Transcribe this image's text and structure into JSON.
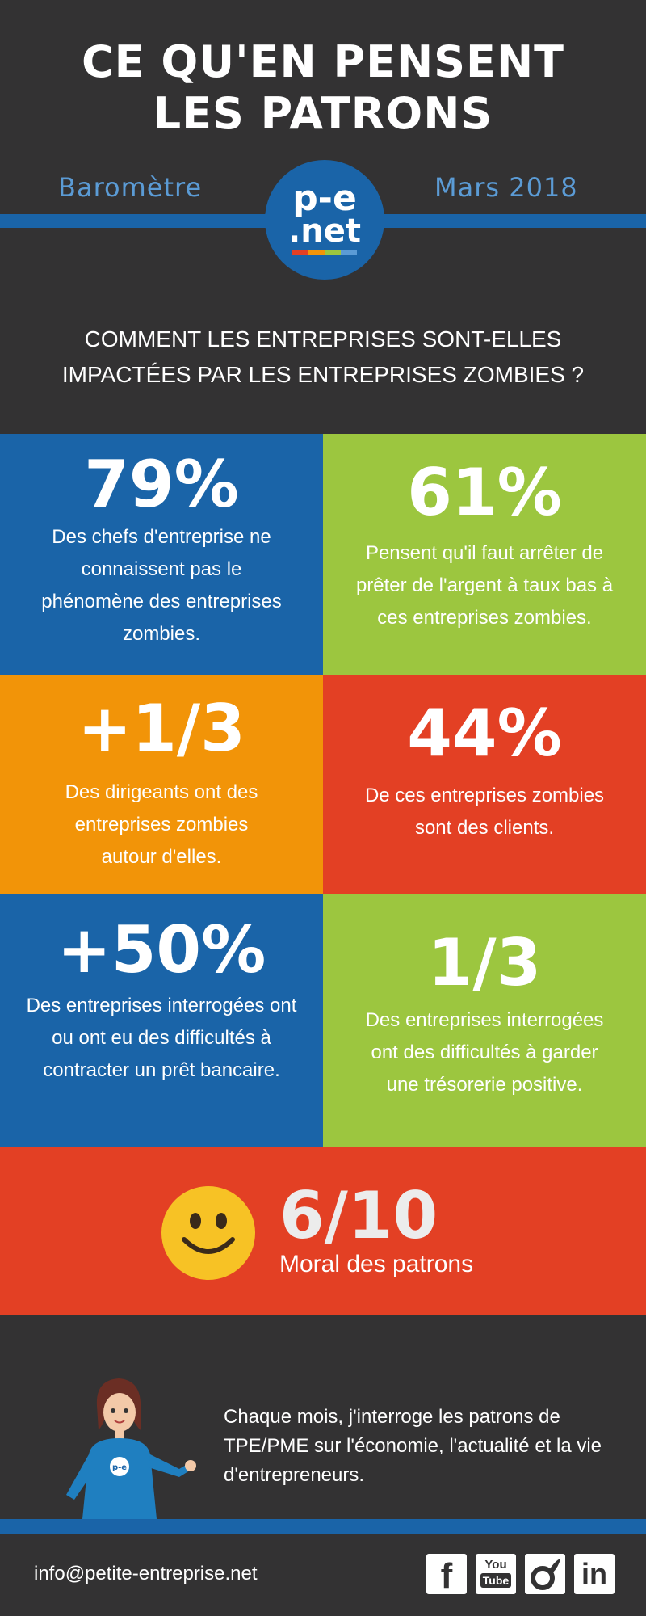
{
  "header": {
    "title_line1": "CE QU'EN PENSENT",
    "title_line2": "LES PATRONS",
    "left_label": "Baromètre",
    "right_label": "Mars 2018",
    "logo_line1": "p-e",
    "logo_line2": ".net"
  },
  "question": {
    "line1": "COMMENT LES ENTREPRISES SONT-ELLES",
    "line2": "IMPACTÉES PAR LES ENTREPRISES ZOMBIES ?"
  },
  "stats": [
    {
      "value": "79%",
      "text": "Des chefs d'entreprise ne connaissent pas le phénomène des entreprises zombies.",
      "color": "#1a64a8"
    },
    {
      "value": "61%",
      "text": "Pensent qu'il faut arrêter de prêter de l'argent à taux bas à ces entreprises zombies.",
      "color": "#9cc63f"
    },
    {
      "value": "+1/3",
      "text": "Des dirigeants ont des entreprises zombies autour d'elles.",
      "color": "#f29408"
    },
    {
      "value": "44%",
      "text": "De ces entreprises zombies sont des clients.",
      "color": "#e34024"
    },
    {
      "value": "+50%",
      "text": "Des entreprises interrogées ont ou ont eu des difficultés à contracter un prêt bancaire.",
      "color": "#1a64a8"
    },
    {
      "value": "1/3",
      "text": "Des entreprises interrogées ont des difficultés à garder une trésorerie positive.",
      "color": "#9cc63f"
    }
  ],
  "moral": {
    "value": "6/10",
    "label": "Moral des patrons",
    "color": "#e34024"
  },
  "note": {
    "text": "Chaque mois, j'interroge les patrons de TPE/PME sur l'économie, l'actualité et la vie d'entrepreneurs."
  },
  "footer": {
    "email": "info@petite-entreprise.net",
    "social": [
      {
        "icon": "facebook-icon",
        "label": "f"
      },
      {
        "icon": "youtube-icon",
        "label_top": "You",
        "label_bottom": "Tube"
      },
      {
        "icon": "viadeo-icon"
      },
      {
        "icon": "linkedin-icon",
        "label": "in"
      }
    ]
  }
}
